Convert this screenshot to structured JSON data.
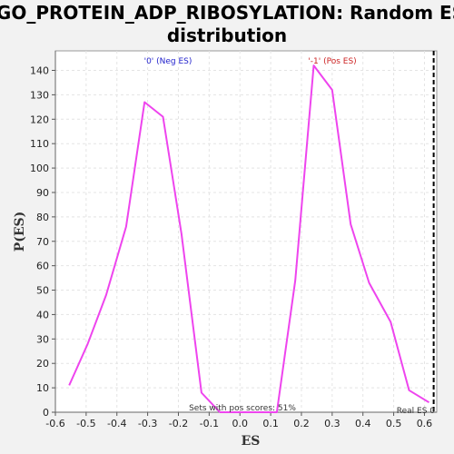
{
  "chart_data": {
    "type": "line",
    "title_line1": "GO_PROTEIN_ADP_RIBOSYLATION: Random ES",
    "title_line2": "distribution",
    "xlabel": "ES",
    "ylabel": "P(ES)",
    "xlim": [
      -0.6,
      0.64
    ],
    "ylim": [
      0,
      148
    ],
    "x_ticks": [
      -0.6,
      -0.5,
      -0.4,
      -0.3,
      -0.2,
      -0.1,
      0.0,
      0.1,
      0.2,
      0.3,
      0.4,
      0.5,
      0.6
    ],
    "x_tick_labels": [
      "-0.6",
      "-0.5",
      "-0.4",
      "-0.3",
      "-0.2",
      "-0.1",
      "0.0",
      "0.1",
      "0.2",
      "0.3",
      "0.4",
      "0.5",
      "0.6"
    ],
    "y_ticks": [
      0,
      10,
      20,
      30,
      40,
      50,
      60,
      70,
      80,
      90,
      100,
      110,
      120,
      130,
      140
    ],
    "y_tick_labels": [
      "0",
      "10",
      "20",
      "30",
      "40",
      "50",
      "60",
      "70",
      "80",
      "90",
      "100",
      "110",
      "120",
      "130",
      "140"
    ],
    "grid": true,
    "series": [
      {
        "color": "#ee44ee",
        "x": [
          -0.555,
          -0.495,
          -0.435,
          -0.37,
          -0.31,
          -0.25,
          -0.19,
          -0.125,
          -0.065,
          0.0,
          0.06,
          0.12,
          0.18,
          0.24,
          0.3,
          0.36,
          0.42,
          0.49,
          0.55,
          0.615
        ],
        "y": [
          11,
          28,
          48,
          76,
          127,
          121,
          73,
          8,
          0,
          0,
          0,
          0,
          54,
          142,
          132,
          77,
          53,
          37,
          9,
          4
        ]
      }
    ],
    "annotations": {
      "neg_label": "'0' (Neg ES)",
      "neg_color": "#2222cc",
      "pos_label": "'-1' (Pos ES)",
      "pos_color": "#cc2222",
      "pos_scores_text": "Sets with pos scores: 51%",
      "real_es_label": "Real ES 0"
    },
    "real_es_x": 0.63
  }
}
